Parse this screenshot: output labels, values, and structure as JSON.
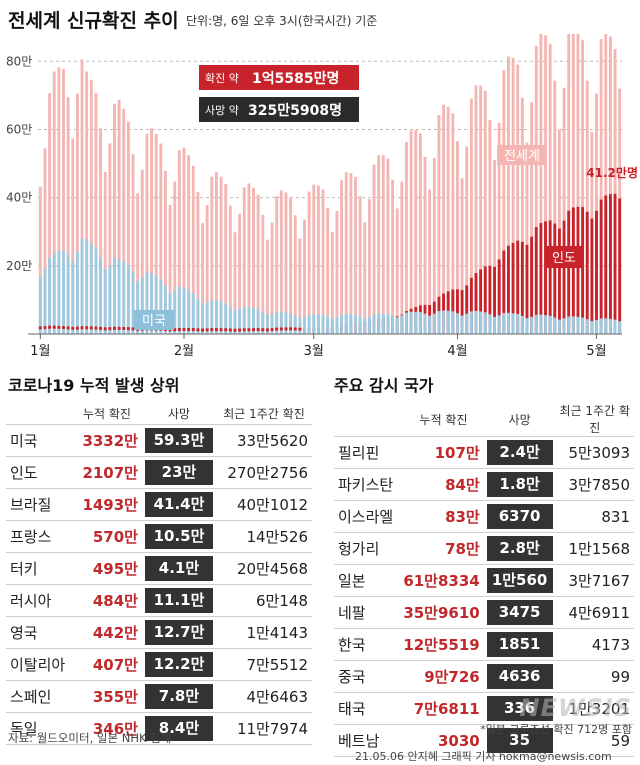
{
  "title": "전세계 신규확진 추이",
  "unit_note": "단위:명, 6일 오후 3시(한국시간) 기준",
  "chart_data": {
    "type": "bar",
    "y_ticks": [
      "80만",
      "60만",
      "40만",
      "20만"
    ],
    "y_tick_values": [
      800000,
      600000,
      400000,
      200000
    ],
    "ylim": [
      0,
      880000
    ],
    "x_labels": [
      "1월",
      "2월",
      "3월",
      "4월",
      "5월"
    ],
    "x_label_days": [
      0,
      31,
      59,
      90,
      120
    ],
    "n_days": 126,
    "series": [
      {
        "name": "전세계",
        "color": "#f4b6b3"
      },
      {
        "name": "인도",
        "color": "#c8232a"
      },
      {
        "name": "미국",
        "color": "#9ecae1"
      }
    ],
    "world_keypoints": [
      [
        0,
        600000
      ],
      [
        3,
        700000
      ],
      [
        8,
        820000
      ],
      [
        10,
        700000
      ],
      [
        15,
        650000
      ],
      [
        22,
        560000
      ],
      [
        29,
        520000
      ],
      [
        36,
        440000
      ],
      [
        43,
        410000
      ],
      [
        50,
        380000
      ],
      [
        57,
        390000
      ],
      [
        64,
        420000
      ],
      [
        71,
        460000
      ],
      [
        78,
        520000
      ],
      [
        85,
        600000
      ],
      [
        92,
        640000
      ],
      [
        99,
        720000
      ],
      [
        106,
        790000
      ],
      [
        113,
        840000
      ],
      [
        120,
        820000
      ],
      [
        125,
        800000
      ]
    ],
    "us_keypoints": [
      [
        0,
        200000
      ],
      [
        5,
        240000
      ],
      [
        9,
        270000
      ],
      [
        15,
        220000
      ],
      [
        22,
        180000
      ],
      [
        29,
        140000
      ],
      [
        36,
        100000
      ],
      [
        43,
        80000
      ],
      [
        50,
        65000
      ],
      [
        57,
        55000
      ],
      [
        64,
        55000
      ],
      [
        71,
        55000
      ],
      [
        78,
        60000
      ],
      [
        85,
        65000
      ],
      [
        92,
        65000
      ],
      [
        99,
        60000
      ],
      [
        106,
        55000
      ],
      [
        113,
        50000
      ],
      [
        120,
        45000
      ],
      [
        125,
        40000
      ]
    ],
    "india_keypoints": [
      [
        0,
        20000
      ],
      [
        30,
        13000
      ],
      [
        45,
        12000
      ],
      [
        57,
        16000
      ],
      [
        64,
        22000
      ],
      [
        71,
        40000
      ],
      [
        78,
        60000
      ],
      [
        85,
        100000
      ],
      [
        92,
        150000
      ],
      [
        99,
        230000
      ],
      [
        106,
        300000
      ],
      [
        113,
        350000
      ],
      [
        120,
        380000
      ],
      [
        125,
        412000
      ]
    ],
    "annotations": {
      "confirmed_label": "확진 약",
      "confirmed_value": "1억5585만명",
      "death_label": "사망 약",
      "death_value": "325만5908명",
      "world_series_label": "전세계",
      "india_series_label": "인도",
      "us_series_label": "미국",
      "india_latest": "41.2만명"
    }
  },
  "left_table": {
    "title": "코로나19 누적 발생 상위",
    "headers": [
      "누적 확진",
      "사망",
      "최근 1주간 확진"
    ],
    "rows": [
      {
        "name": "미국",
        "cumulative": "3332만",
        "deaths": "59.3만",
        "week": "33만5620"
      },
      {
        "name": "인도",
        "cumulative": "2107만",
        "deaths": "23만",
        "week": "270만2756"
      },
      {
        "name": "브라질",
        "cumulative": "1493만",
        "deaths": "41.4만",
        "week": "40만1012"
      },
      {
        "name": "프랑스",
        "cumulative": "570만",
        "deaths": "10.5만",
        "week": "14만526"
      },
      {
        "name": "터키",
        "cumulative": "495만",
        "deaths": "4.1만",
        "week": "20만4568"
      },
      {
        "name": "러시아",
        "cumulative": "484만",
        "deaths": "11.1만",
        "week": "6만148"
      },
      {
        "name": "영국",
        "cumulative": "442만",
        "deaths": "12.7만",
        "week": "1만4143"
      },
      {
        "name": "이탈리아",
        "cumulative": "407만",
        "deaths": "12.2만",
        "week": "7만5512"
      },
      {
        "name": "스페인",
        "cumulative": "355만",
        "deaths": "7.8만",
        "week": "4만6463"
      },
      {
        "name": "독일",
        "cumulative": "346만",
        "deaths": "8.4만",
        "week": "11만7974"
      }
    ]
  },
  "right_table": {
    "title": "주요 감시 국가",
    "headers": [
      "누적 확진",
      "사망",
      "최근 1주간 확진"
    ],
    "rows": [
      {
        "name": "필리핀",
        "cumulative": "107만",
        "deaths": "2.4만",
        "week": "5만3093"
      },
      {
        "name": "파키스탄",
        "cumulative": "84만",
        "deaths": "1.8만",
        "week": "3만7850"
      },
      {
        "name": "이스라엘",
        "cumulative": "83만",
        "deaths": "6370",
        "week": "831"
      },
      {
        "name": "헝가리",
        "cumulative": "78만",
        "deaths": "2.8만",
        "week": "1만1568"
      },
      {
        "name": "일본",
        "cumulative": "61만8334",
        "deaths": "1만560",
        "week": "3만7167"
      },
      {
        "name": "네팔",
        "cumulative": "35만9610",
        "deaths": "3475",
        "week": "4만6911"
      },
      {
        "name": "한국",
        "cumulative": "12만5519",
        "deaths": "1851",
        "week": "4173"
      },
      {
        "name": "중국",
        "cumulative": "9만726",
        "deaths": "4636",
        "week": "99"
      },
      {
        "name": "태국",
        "cumulative": "7만6811",
        "deaths": "336",
        "week": "1만3201"
      },
      {
        "name": "베트남",
        "cumulative": "3030",
        "deaths": "35",
        "week": "59"
      }
    ]
  },
  "footnote": "*일본 크루즈선 확진 712명 포함",
  "source": "자료: 월드오미터, 일본 NHK 집계",
  "credit": "21.05.06 안지혜 그래픽 기자 hokma@newsis.com",
  "watermark": "NEWSIS",
  "colors": {
    "world": "#f4b6b3",
    "india": "#c8232a",
    "us": "#9ecae1",
    "death_cell": "#333333",
    "accent_red": "#c0282b"
  }
}
